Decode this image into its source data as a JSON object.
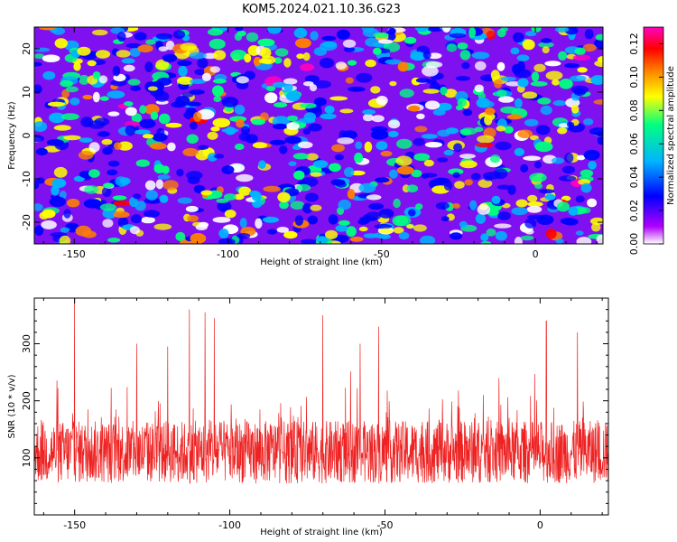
{
  "title": "KOM5.2024.021.10.36.G23",
  "chart_data": [
    {
      "type": "heatmap",
      "xlabel": "Height of straight line (km)",
      "ylabel": "Frequency (Hz)",
      "xlim": [
        -163,
        22
      ],
      "ylim": [
        -25,
        25
      ],
      "x_ticks": [
        -150,
        -100,
        -50,
        0
      ],
      "y_ticks": [
        -20,
        -10,
        0,
        10,
        20
      ],
      "colorbar": {
        "label": "Normalized spectral amplitude",
        "range": [
          0,
          0.13
        ],
        "ticks": [
          "0.00",
          "0.02",
          "0.04",
          "0.06",
          "0.08",
          "0.10",
          "0.12"
        ]
      },
      "colorscale": [
        "#ffffff",
        "#b000ff",
        "#0000ff",
        "#00b4ff",
        "#00ff80",
        "#ffff00",
        "#ff8000",
        "#ff0000",
        "#ff00c0"
      ],
      "grid": false
    },
    {
      "type": "line",
      "xlabel": "Height of straight line (km)",
      "ylabel": "SNR (10 * v/v)",
      "xlim": [
        -163,
        22
      ],
      "ylim": [
        0,
        380
      ],
      "x_ticks": [
        -150,
        -100,
        -50,
        0
      ],
      "y_ticks": [
        100,
        200,
        300
      ],
      "series": [
        {
          "color": "#ee2222",
          "baseline": 110,
          "spread": 55,
          "peaks": [
            [
              -150,
              380
            ],
            [
              -113,
              360
            ],
            [
              -108,
              355
            ],
            [
              -105,
              345
            ],
            [
              -70,
              350
            ],
            [
              -52,
              330
            ],
            [
              -58,
              300
            ],
            [
              2,
              340
            ],
            [
              12,
              320
            ],
            [
              -130,
              300
            ],
            [
              -120,
              295
            ]
          ]
        }
      ],
      "grid": false
    }
  ]
}
